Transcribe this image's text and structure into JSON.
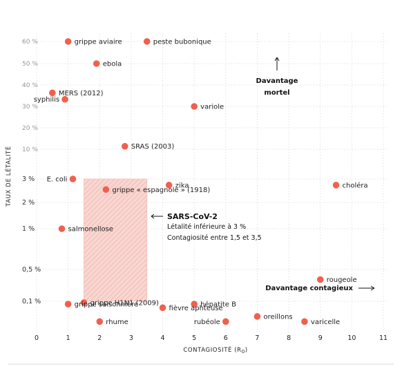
{
  "chart_data": {
    "type": "scatter",
    "xlabel": "CONTAGIOSITÉ (R",
    "xlabel_sub": "0",
    "xlabel_close": ")",
    "ylabel": "TAUX DE LÉTALITÉ",
    "x_ticks": [
      "0",
      "1",
      "2",
      "3",
      "4",
      "5",
      "6",
      "7",
      "8",
      "9",
      "10",
      "11"
    ],
    "xlim": [
      0,
      11
    ],
    "y_scale": "categorical-log",
    "y_ticks": [
      {
        "label": "60 %",
        "strong": false
      },
      {
        "label": "50 %",
        "strong": false
      },
      {
        "label": "40 %",
        "strong": false
      },
      {
        "label": "30 %",
        "strong": false
      },
      {
        "label": "20 %",
        "strong": false
      },
      {
        "label": "10 %",
        "strong": false
      },
      {
        "label": "3 %",
        "strong": true
      },
      {
        "label": "2 %",
        "strong": true
      },
      {
        "label": "1 %",
        "strong": true
      },
      {
        "label": "0,5 %",
        "strong": true
      },
      {
        "label": "0,1 %",
        "strong": true
      }
    ],
    "grid": true,
    "point_color": "#f0604e",
    "points": [
      {
        "name": "grippe aviaire",
        "x": 1.0,
        "y": "60 %",
        "label_side": "right"
      },
      {
        "name": "peste bubonique",
        "x": 3.5,
        "y": "60 %",
        "label_side": "right"
      },
      {
        "name": "ebola",
        "x": 1.9,
        "y": "50 %",
        "label_side": "right"
      },
      {
        "name": "MERS (2012)",
        "x": 0.5,
        "y": "36 %",
        "label_side": "right"
      },
      {
        "name": "syphilis",
        "x": 0.9,
        "y": "33 %",
        "label_side": "left"
      },
      {
        "name": "variole",
        "x": 5.0,
        "y": "30 %",
        "label_side": "right"
      },
      {
        "name": "SRAS (2003)",
        "x": 2.8,
        "y": "11 %",
        "label_side": "right"
      },
      {
        "name": "E. coli",
        "x": 1.15,
        "y": "3 %",
        "label_side": "left"
      },
      {
        "name": "zika",
        "x": 4.2,
        "y": "2.7 %",
        "label_side": "right"
      },
      {
        "name": "choléra",
        "x": 9.5,
        "y": "2.7 %",
        "label_side": "right"
      },
      {
        "name": "grippe « espagnole » (1918)",
        "x": 2.2,
        "y": "2.5 %",
        "label_side": "right"
      },
      {
        "name": "salmonellose",
        "x": 0.8,
        "y": "1 %",
        "label_side": "right"
      },
      {
        "name": "rougeole",
        "x": 9.0,
        "y": "0.3 %",
        "label_side": "right"
      },
      {
        "name": "grippe H1N1 (2009)",
        "x": 1.5,
        "y": "0.09 %",
        "label_side": "right"
      },
      {
        "name": "grippe saisonnière",
        "x": 1.0,
        "y": "0.08 %",
        "label_side": "right"
      },
      {
        "name": "hépatite B",
        "x": 5.0,
        "y": "0.08 %",
        "label_side": "right"
      },
      {
        "name": "fièvre aphteuse",
        "x": 4.0,
        "y": "0.06 %",
        "label_side": "right"
      },
      {
        "name": "oreillons",
        "x": 7.0,
        "y": "0.03 %",
        "label_side": "right"
      },
      {
        "name": "rhume",
        "x": 2.0,
        "y": "0.02 %",
        "label_side": "right"
      },
      {
        "name": "rubéole",
        "x": 6.0,
        "y": "0.02 %",
        "label_side": "left"
      },
      {
        "name": "varicelle",
        "x": 8.5,
        "y": "0.02 %",
        "label_side": "right"
      }
    ],
    "highlight_region": {
      "x_range": [
        1.5,
        3.5
      ],
      "y_range": [
        "0.1 %",
        "3 %"
      ],
      "color": "#f9d6d1",
      "hatch": "#eeb3ab"
    },
    "annotations": {
      "sars": {
        "title": "SARS-CoV-2",
        "line1": "Létalité inférieure à 3 %",
        "line2": "Contagiosité entre 1,5 et 3,5"
      },
      "mortel": {
        "line1": "Davantage",
        "line2": "mortel"
      },
      "contagieux": {
        "text": "Davantage contagieux"
      }
    }
  }
}
